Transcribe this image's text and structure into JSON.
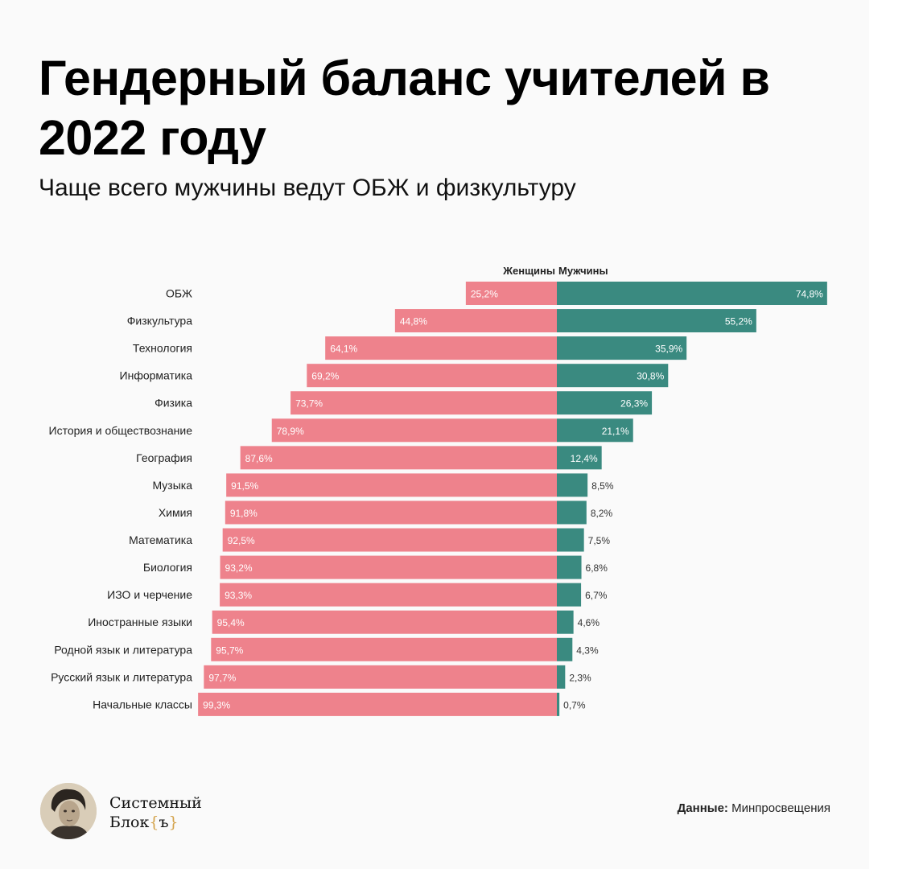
{
  "title": "Гендерный баланс учителей в 2022 году",
  "subtitle": "Чаще всего мужчины ведут ОБЖ и физкультуру",
  "brand": {
    "line1": "Системный",
    "line2": "Блок",
    "brace_open": "{",
    "brace_letter": "ъ",
    "brace_close": "}"
  },
  "source": {
    "label": "Данные:",
    "value": "Минпросвещения"
  },
  "colors": {
    "women": "#ee828c",
    "men": "#3a8a80",
    "background": "#fafafa"
  },
  "chart_data": {
    "type": "bar",
    "orientation": "horizontal-diverging",
    "unit": "%",
    "xlim": [
      0,
      100
    ],
    "grid": false,
    "legend": "top-center",
    "categories": [
      "ОБЖ",
      "Физкультура",
      "Технология",
      "Информатика",
      "Физика",
      "История и обществознание",
      "География",
      "Музыка",
      "Химия",
      "Математика",
      "Биология",
      "ИЗО и черчение",
      "Иностранные языки",
      "Родной язык и литература",
      "Русский язык и литература",
      "Начальные классы"
    ],
    "series": [
      {
        "name": "Женщины",
        "color": "#ee828c",
        "values": [
          25.2,
          44.8,
          64.1,
          69.2,
          73.7,
          78.9,
          87.6,
          91.5,
          91.8,
          92.5,
          93.2,
          93.3,
          95.4,
          95.7,
          97.7,
          99.3
        ],
        "labels": [
          "25,2%",
          "44,8%",
          "64,1%",
          "69,2%",
          "73,7%",
          "78,9%",
          "87,6%",
          "91,5%",
          "91,8%",
          "92,5%",
          "93,2%",
          "93,3%",
          "95,4%",
          "95,7%",
          "97,7%",
          "99,3%"
        ]
      },
      {
        "name": "Мужчины",
        "color": "#3a8a80",
        "values": [
          74.8,
          55.2,
          35.9,
          30.8,
          26.3,
          21.1,
          12.4,
          8.5,
          8.2,
          7.5,
          6.8,
          6.7,
          4.6,
          4.3,
          2.3,
          0.7
        ],
        "labels": [
          "74,8%",
          "55,2%",
          "35,9%",
          "30,8%",
          "26,3%",
          "21,1%",
          "12,4%",
          "8,5%",
          "8,2%",
          "7,5%",
          "6,8%",
          "6,7%",
          "4,6%",
          "4,3%",
          "2,3%",
          "0,7%"
        ]
      }
    ]
  }
}
